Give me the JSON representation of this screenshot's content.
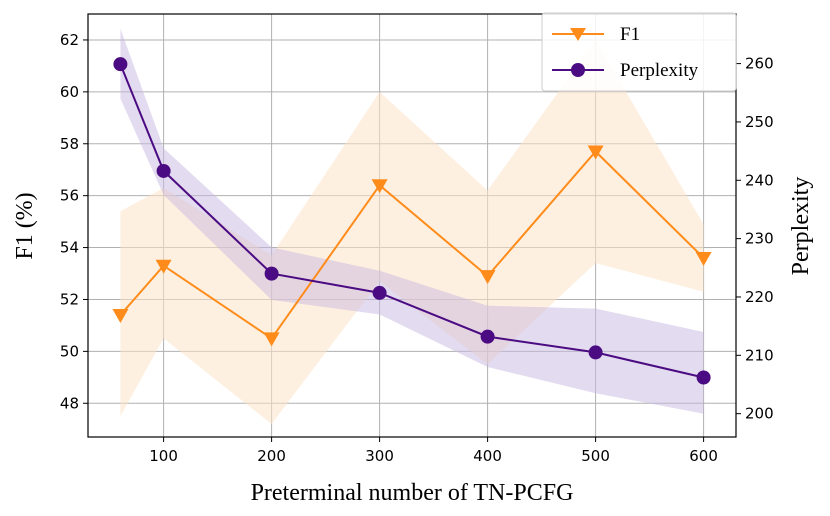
{
  "chart_data": {
    "type": "line",
    "xlabel": "Preterminal number of TN-PCFG",
    "ylabel": "F1 (%)",
    "y2label": "Perplexity",
    "x": [
      60,
      100,
      200,
      300,
      400,
      500,
      600
    ],
    "xticks": [
      100,
      200,
      300,
      400,
      500,
      600
    ],
    "xlim": [
      30,
      630
    ],
    "yticks": [
      48,
      50,
      52,
      54,
      56,
      58,
      60,
      62
    ],
    "ylim": [
      46.7,
      63
    ],
    "y2ticks": [
      200,
      210,
      220,
      230,
      240,
      250,
      260
    ],
    "y2lim": [
      196,
      268.5
    ],
    "grid": true,
    "legend_position": "top-right",
    "series": [
      {
        "name": "F1",
        "axis": "left",
        "color": "#ff8c1a",
        "band_color": "#fde3c9",
        "marker": "triangle-down",
        "values": [
          51.4,
          53.3,
          50.5,
          56.4,
          52.9,
          57.7,
          53.6
        ],
        "lower": [
          47.5,
          50.5,
          47.2,
          52.7,
          49.5,
          53.4,
          52.3
        ],
        "upper": [
          55.4,
          56.3,
          53.7,
          60.0,
          56.2,
          62.0,
          54.9
        ]
      },
      {
        "name": "Perplexity",
        "axis": "right",
        "color": "#4b0b82",
        "band_color": "#c7b8e0",
        "marker": "circle",
        "values": [
          259.9,
          241.6,
          224.0,
          220.7,
          213.2,
          210.5,
          206.2
        ],
        "lower": [
          254.0,
          237.5,
          219.5,
          217.0,
          208.0,
          203.5,
          200.0
        ],
        "upper": [
          266.0,
          245.5,
          228.5,
          224.5,
          218.5,
          218.0,
          214.0
        ]
      }
    ]
  }
}
